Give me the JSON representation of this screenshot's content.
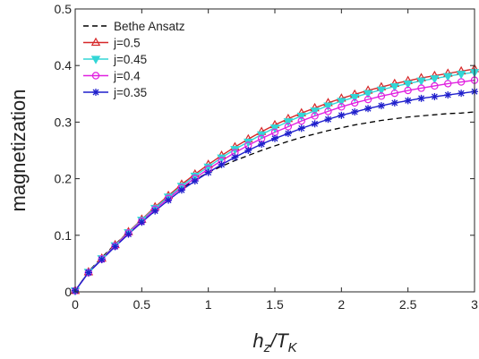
{
  "chart_data": {
    "type": "line",
    "title": "",
    "xlabel": "h_z/T_K",
    "ylabel": "magnetization",
    "xlim": [
      0,
      3
    ],
    "ylim": [
      0,
      0.5
    ],
    "xticks": [
      "0",
      "0.5",
      "1",
      "1.5",
      "2",
      "2.5",
      "3"
    ],
    "yticks": [
      "0",
      "0.1",
      "0.2",
      "0.3",
      "0.4",
      "0.5"
    ],
    "grid": false,
    "legend_position": "top-left",
    "series": [
      {
        "name": "Bethe Ansatz",
        "color": "#000000",
        "line": "dashed",
        "marker": "none",
        "x": [
          0,
          0.1,
          0.2,
          0.3,
          0.4,
          0.5,
          0.6,
          0.7,
          0.8,
          0.9,
          1.0,
          1.1,
          1.2,
          1.3,
          1.4,
          1.5,
          1.6,
          1.7,
          1.8,
          1.9,
          2.0,
          2.1,
          2.2,
          2.3,
          2.4,
          2.5,
          2.6,
          2.7,
          2.8,
          2.9,
          3.0
        ],
        "y": [
          0.002,
          0.036,
          0.061,
          0.084,
          0.106,
          0.127,
          0.147,
          0.166,
          0.183,
          0.198,
          0.211,
          0.222,
          0.232,
          0.241,
          0.25,
          0.258,
          0.266,
          0.273,
          0.279,
          0.285,
          0.29,
          0.295,
          0.299,
          0.303,
          0.306,
          0.309,
          0.311,
          0.313,
          0.315,
          0.316,
          0.318
        ]
      },
      {
        "name": "j=0.5",
        "color": "#d62728",
        "line": "solid",
        "marker": "triangle-up",
        "x": [
          0,
          0.1,
          0.2,
          0.3,
          0.4,
          0.5,
          0.6,
          0.7,
          0.8,
          0.9,
          1.0,
          1.1,
          1.2,
          1.3,
          1.4,
          1.5,
          1.6,
          1.7,
          1.8,
          1.9,
          2.0,
          2.1,
          2.2,
          2.3,
          2.4,
          2.5,
          2.6,
          2.7,
          2.8,
          2.9,
          3.0
        ],
        "y": [
          0.002,
          0.035,
          0.059,
          0.083,
          0.106,
          0.128,
          0.15,
          0.17,
          0.19,
          0.208,
          0.225,
          0.241,
          0.256,
          0.27,
          0.283,
          0.295,
          0.306,
          0.316,
          0.325,
          0.334,
          0.342,
          0.349,
          0.356,
          0.362,
          0.368,
          0.373,
          0.378,
          0.382,
          0.386,
          0.39,
          0.394
        ]
      },
      {
        "name": "j=0.45",
        "color": "#33d6d6",
        "line": "solid",
        "marker": "triangle-down",
        "x": [
          0,
          0.1,
          0.2,
          0.3,
          0.4,
          0.5,
          0.6,
          0.7,
          0.8,
          0.9,
          1.0,
          1.1,
          1.2,
          1.3,
          1.4,
          1.5,
          1.6,
          1.7,
          1.8,
          1.9,
          2.0,
          2.1,
          2.2,
          2.3,
          2.4,
          2.5,
          2.6,
          2.7,
          2.8,
          2.9,
          3.0
        ],
        "y": [
          0.002,
          0.035,
          0.059,
          0.082,
          0.105,
          0.127,
          0.148,
          0.168,
          0.187,
          0.205,
          0.221,
          0.237,
          0.252,
          0.265,
          0.278,
          0.29,
          0.301,
          0.311,
          0.32,
          0.329,
          0.337,
          0.344,
          0.351,
          0.357,
          0.363,
          0.368,
          0.373,
          0.377,
          0.381,
          0.385,
          0.388
        ]
      },
      {
        "name": "j=0.4",
        "color": "#e020e0",
        "line": "solid",
        "marker": "circle",
        "x": [
          0,
          0.1,
          0.2,
          0.3,
          0.4,
          0.5,
          0.6,
          0.7,
          0.8,
          0.9,
          1.0,
          1.1,
          1.2,
          1.3,
          1.4,
          1.5,
          1.6,
          1.7,
          1.8,
          1.9,
          2.0,
          2.1,
          2.2,
          2.3,
          2.4,
          2.5,
          2.6,
          2.7,
          2.8,
          2.9,
          3.0
        ],
        "y": [
          0.002,
          0.034,
          0.058,
          0.081,
          0.104,
          0.125,
          0.146,
          0.165,
          0.184,
          0.201,
          0.217,
          0.232,
          0.246,
          0.259,
          0.271,
          0.282,
          0.292,
          0.302,
          0.311,
          0.319,
          0.327,
          0.334,
          0.34,
          0.346,
          0.351,
          0.356,
          0.36,
          0.364,
          0.368,
          0.371,
          0.374
        ]
      },
      {
        "name": "j=0.35",
        "color": "#1f1fcc",
        "line": "solid",
        "marker": "star",
        "x": [
          0,
          0.1,
          0.2,
          0.3,
          0.4,
          0.5,
          0.6,
          0.7,
          0.8,
          0.9,
          1.0,
          1.1,
          1.2,
          1.3,
          1.4,
          1.5,
          1.6,
          1.7,
          1.8,
          1.9,
          2.0,
          2.1,
          2.2,
          2.3,
          2.4,
          2.5,
          2.6,
          2.7,
          2.8,
          2.9,
          3.0
        ],
        "y": [
          0.002,
          0.034,
          0.057,
          0.08,
          0.102,
          0.123,
          0.143,
          0.162,
          0.18,
          0.196,
          0.211,
          0.225,
          0.238,
          0.25,
          0.261,
          0.271,
          0.28,
          0.289,
          0.297,
          0.305,
          0.312,
          0.318,
          0.324,
          0.329,
          0.334,
          0.338,
          0.342,
          0.345,
          0.348,
          0.351,
          0.354
        ]
      }
    ]
  }
}
